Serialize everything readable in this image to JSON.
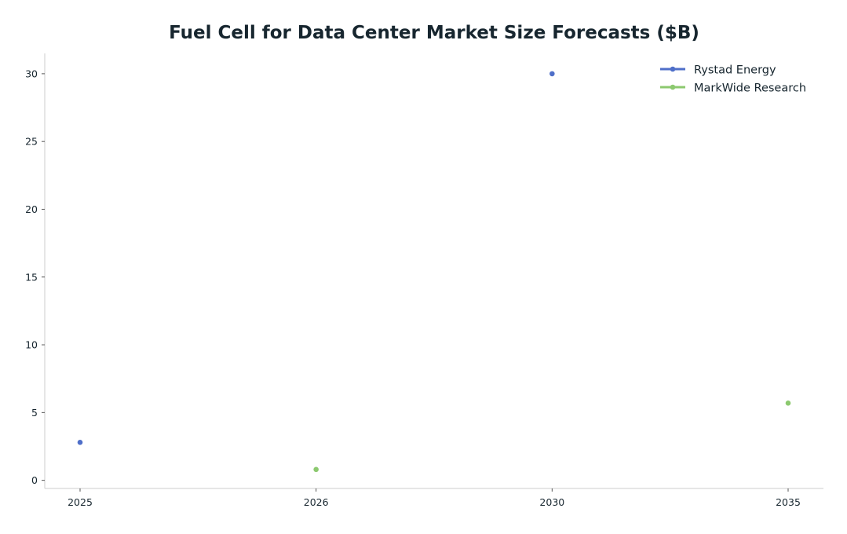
{
  "chart_data": {
    "type": "line",
    "title": "Fuel Cell for Data Center Market Size Forecasts ($B)",
    "xlabel": "",
    "ylabel": "",
    "categories": [
      "2025",
      "2026",
      "2030",
      "2035"
    ],
    "ylim": [
      -0.6,
      31.5
    ],
    "yticks": [
      "0",
      "5",
      "10",
      "15",
      "20",
      "25",
      "30"
    ],
    "grid": false,
    "legend_position": "top-right",
    "series": [
      {
        "name": "Rystad Energy",
        "color": "#4f6fc9",
        "points": [
          {
            "x": "2025",
            "y": 2.8
          },
          {
            "x": "2030",
            "y": 30.0
          }
        ]
      },
      {
        "name": "MarkWide Research",
        "color": "#8cc96f",
        "points": [
          {
            "x": "2026",
            "y": 0.8
          },
          {
            "x": "2035",
            "y": 5.7
          }
        ]
      }
    ]
  }
}
